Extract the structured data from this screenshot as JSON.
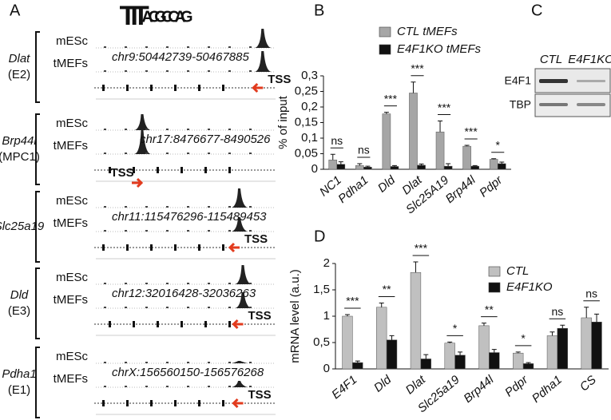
{
  "chart_data": [
    {
      "type": "bar",
      "y_label": "% of input",
      "categories": [
        "NC1",
        "Pdha1",
        "Dld",
        "Dlat",
        "Slc25A19",
        "Brp44l",
        "Pdpr"
      ],
      "series": [
        {
          "name": "CTL tMEFs",
          "color": "#a6a6a6",
          "values": [
            0.03,
            0.012,
            0.178,
            0.245,
            0.12,
            0.074,
            0.032
          ],
          "errors": [
            0.018,
            0.006,
            0.005,
            0.035,
            0.035,
            0.003,
            0.002
          ]
        },
        {
          "name": "E4F1KO tMEFs",
          "color": "#111111",
          "values": [
            0.016,
            0.007,
            0.009,
            0.013,
            0.01,
            0.01,
            0.018
          ],
          "errors": [
            0.008,
            0.003,
            0.003,
            0.004,
            0.008,
            0.002,
            0.005
          ]
        }
      ],
      "annotations": [
        "ns",
        "ns",
        "***",
        "***",
        "***",
        "***",
        "*"
      ],
      "ylim": [
        0,
        0.3
      ],
      "yticks": [
        0,
        {
          "value": 0.05,
          "label": "0,05"
        },
        {
          "value": 0.1,
          "label": "0,1"
        },
        {
          "value": 0.15,
          "label": "0,15"
        },
        {
          "value": 0.2,
          "label": "0,2"
        },
        {
          "value": 0.25,
          "label": "0,25"
        },
        {
          "value": 0.3,
          "label": "0,3"
        }
      ]
    },
    {
      "type": "bar",
      "y_label": "mRNA level (a.u.)",
      "categories": [
        "E4F1",
        "Dld",
        "Dlat",
        "Slc25a19",
        "Brp44l",
        "Pdpr",
        "Pdha1",
        "CS"
      ],
      "series": [
        {
          "name": "CTL",
          "color": "#c0c0c0",
          "values": [
            1.0,
            1.17,
            1.83,
            0.49,
            0.82,
            0.3,
            0.63,
            0.97
          ],
          "errors": [
            0.03,
            0.08,
            0.2,
            0.02,
            0.05,
            0.02,
            0.07,
            0.2
          ]
        },
        {
          "name": "E4F1KO",
          "color": "#111111",
          "values": [
            0.12,
            0.55,
            0.19,
            0.26,
            0.31,
            0.1,
            0.77,
            0.89
          ],
          "errors": [
            0.03,
            0.08,
            0.08,
            0.06,
            0.06,
            0.02,
            0.06,
            0.15
          ]
        }
      ],
      "annotations": [
        "***",
        "**",
        "***",
        "*",
        "**",
        "*",
        "ns",
        "ns"
      ],
      "ylim": [
        0,
        2
      ],
      "yticks": [
        0,
        {
          "value": 0.5,
          "label": "0,5"
        },
        1,
        {
          "value": 1.5,
          "label": "1,5"
        },
        2
      ]
    }
  ],
  "panel_labels": [
    "A",
    "B",
    "C",
    "D"
  ],
  "panel_a": {
    "logo": [
      {
        "letter": "T",
        "color": "#d9462b"
      },
      {
        "letter": "T",
        "color": "#d9462b"
      },
      {
        "letter": "T",
        "color": "#d9462b"
      },
      {
        "letter": "A",
        "color": "#3aa23a"
      },
      {
        "letter": "C",
        "color": "#2a5fbf"
      },
      {
        "letter": "G",
        "color": "#e8a21c"
      },
      {
        "letter": "C",
        "color": "#2a5fbf"
      },
      {
        "letter": "C",
        "color": "#2a5fbf"
      },
      {
        "letter": "A",
        "color": "#3aa23a"
      },
      {
        "letter": "G",
        "color": "#e8a21c"
      }
    ],
    "rows": [
      {
        "gene": "Dlat",
        "sub": "(E2)",
        "top": "mESc",
        "bottom": "tMEFs",
        "coord": "chr9:50442739-50467885",
        "tss": "TSS"
      },
      {
        "gene": "Brp44l",
        "sub": "(MPC1)",
        "top": "mESc",
        "bottom": "tMEFs",
        "coord": "chr17:8476677-8490526",
        "tss": "TSS"
      },
      {
        "gene": "Slc25a19",
        "top": "mESc",
        "bottom": "tMEFs",
        "coord": "chr11:115476296-115489453",
        "tss": "TSS"
      },
      {
        "gene": "Dld",
        "sub": "(E3)",
        "top": "mESc",
        "bottom": "tMEFs",
        "coord": "chr12:32016428-32036263",
        "tss": "TSS"
      },
      {
        "gene": "Pdha1",
        "sub": "(E1)",
        "top": "mESc",
        "bottom": "tMEFs",
        "coord": "chrX:156560150-156576268",
        "tss": "TSS"
      }
    ]
  },
  "panel_c": {
    "columns": [
      "CTL",
      "E4F1KO"
    ],
    "rows": [
      "E4F1",
      "TBP"
    ]
  }
}
